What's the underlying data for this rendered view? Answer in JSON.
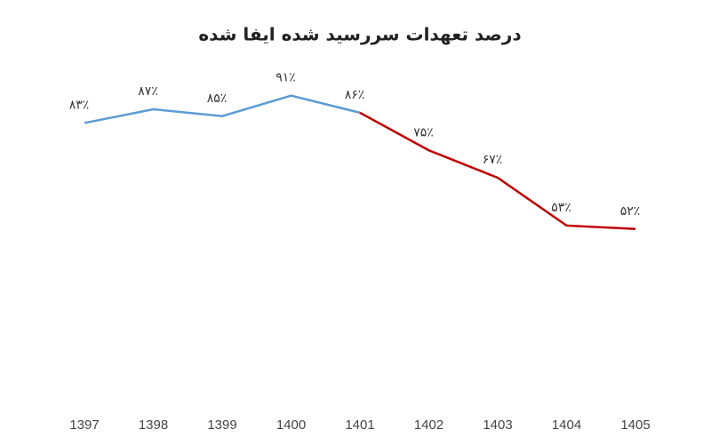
{
  "chart_data": {
    "type": "line",
    "title": "درصد تعهدات سررسید شده ایفا شده",
    "categories": [
      "1397",
      "1398",
      "1399",
      "1400",
      "1401",
      "1402",
      "1403",
      "1404",
      "1405"
    ],
    "ylim": [
      0,
      100
    ],
    "series": [
      {
        "color": "#5b9bd5",
        "values": [
          83,
          87,
          85,
          91,
          86,
          null,
          null,
          null,
          null
        ],
        "value_labels": [
          "۸۳٪",
          "۸۷٪",
          "۸۵٪",
          "۹۱٪",
          "۸۶٪",
          null,
          null,
          null,
          null
        ]
      },
      {
        "color": "#c00000",
        "values": [
          null,
          null,
          null,
          null,
          86,
          75,
          67,
          53,
          52
        ],
        "value_labels": [
          null,
          null,
          null,
          null,
          null,
          "۷۵٪",
          "۶۷٪",
          "۵۳٪",
          "۵۲٪"
        ]
      }
    ]
  }
}
